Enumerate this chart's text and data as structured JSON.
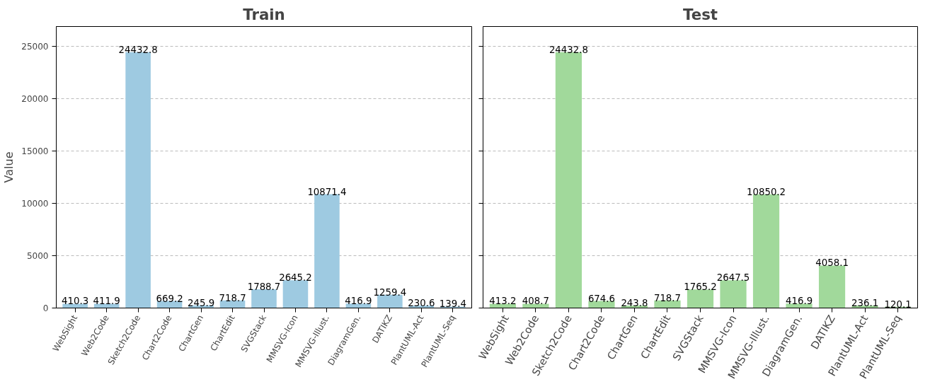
{
  "chart_data": [
    {
      "type": "bar",
      "title": "Train",
      "ylabel": "Value",
      "categories": [
        "WebSight",
        "Web2Code",
        "Sketch2Code",
        "Chart2Code",
        "ChartGen",
        "ChartEdit",
        "SVGStack",
        "MMSVG-Icon",
        "MMSVG-Illust.",
        "DiagramGen.",
        "DATIKZ",
        "PlantUML-Act",
        "PlantUML-Seq"
      ],
      "values": [
        410.3,
        411.9,
        24432.8,
        669.2,
        245.9,
        718.7,
        1788.7,
        2645.2,
        10871.4,
        416.9,
        1259.4,
        230.6,
        139.4
      ],
      "color": "#9ecae1",
      "ylim": [
        0,
        26876
      ],
      "yticks": [
        0,
        5000,
        10000,
        15000,
        20000,
        25000
      ],
      "grid": "y",
      "data_labels": true
    },
    {
      "type": "bar",
      "title": "Test",
      "categories": [
        "WebSight",
        "Web2Code",
        "Sketch2Code",
        "Chart2Code",
        "ChartGen",
        "ChartEdit",
        "SVGStack",
        "MMSVG-Icon",
        "MMSVG-Illust.",
        "DiagramGen.",
        "DATIKZ",
        "PlantUML-Act",
        "PlantUML-Seq"
      ],
      "values": [
        413.2,
        408.7,
        24432.8,
        674.6,
        243.8,
        718.7,
        1765.2,
        2647.5,
        10850.2,
        416.9,
        4058.1,
        236.1,
        120.1
      ],
      "color": "#a1d99b",
      "ylim": [
        0,
        26876
      ],
      "yticks": [
        0,
        5000,
        10000,
        15000,
        20000,
        25000
      ],
      "grid": "y",
      "data_labels": true,
      "tick_labels": "x"
    }
  ]
}
